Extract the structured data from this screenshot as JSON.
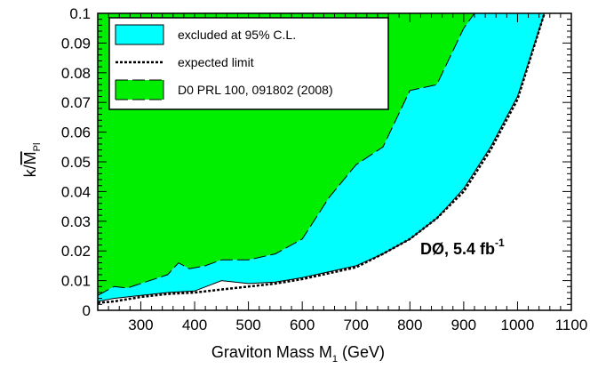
{
  "chart_data": {
    "type": "area",
    "xlabel_main": "Graviton Mass M",
    "xlabel_sub": "1",
    "xlabel_unit": " (GeV)",
    "ylabel_k": "k/",
    "ylabel_M": "M",
    "ylabel_sub": "Pl",
    "xlim": [
      220,
      1100
    ],
    "ylim": [
      0,
      0.1
    ],
    "x_ticks": [
      300,
      400,
      500,
      600,
      700,
      800,
      900,
      1000,
      1100
    ],
    "x_tick_labels": [
      "300",
      "400",
      "500",
      "600",
      "700",
      "800",
      "900",
      "1000",
      "1100"
    ],
    "y_ticks": [
      0,
      0.01,
      0.02,
      0.03,
      0.04,
      0.05,
      0.06,
      0.07,
      0.08,
      0.09,
      0.1
    ],
    "y_tick_labels": [
      "0",
      "0.01",
      "0.02",
      "0.03",
      "0.04",
      "0.05",
      "0.06",
      "0.07",
      "0.08",
      "0.09",
      "0.1"
    ],
    "annotation": {
      "text": "DØ, 5.4 fb",
      "sup": "-1"
    },
    "legend": [
      {
        "label": "excluded at 95% C.L.",
        "kind": "fill",
        "color": "#00ffff"
      },
      {
        "label": "expected limit",
        "kind": "dotted-line",
        "color": "#000000"
      },
      {
        "label": "D0 PRL 100, 091802 (2008)",
        "kind": "fill-dashed",
        "color": "#00ee00"
      }
    ],
    "series": [
      {
        "name": "excluded at 95% C.L.",
        "color": "#00ffff",
        "x": [
          220,
          250,
          300,
          350,
          400,
          450,
          500,
          550,
          600,
          650,
          700,
          750,
          800,
          850,
          900,
          950,
          1000,
          1050
        ],
        "y": [
          0.003,
          0.004,
          0.005,
          0.006,
          0.0065,
          0.01,
          0.009,
          0.0095,
          0.011,
          0.013,
          0.015,
          0.019,
          0.024,
          0.031,
          0.041,
          0.055,
          0.072,
          0.1
        ]
      },
      {
        "name": "expected limit",
        "color": "#000000",
        "x": [
          220,
          250,
          300,
          350,
          400,
          450,
          500,
          550,
          600,
          650,
          700,
          750,
          800,
          850,
          900,
          950,
          1000,
          1050
        ],
        "y": [
          0.0025,
          0.003,
          0.0045,
          0.0055,
          0.006,
          0.007,
          0.008,
          0.009,
          0.0105,
          0.0125,
          0.0145,
          0.019,
          0.024,
          0.031,
          0.04,
          0.054,
          0.071,
          0.1
        ]
      },
      {
        "name": "D0 PRL 100, 091802 (2008)",
        "color": "#00ee00",
        "x": [
          220,
          250,
          275,
          300,
          350,
          370,
          390,
          420,
          450,
          500,
          550,
          600,
          650,
          700,
          750,
          800,
          850,
          900,
          920
        ],
        "y": [
          0.005,
          0.008,
          0.0075,
          0.009,
          0.012,
          0.016,
          0.014,
          0.015,
          0.017,
          0.017,
          0.019,
          0.024,
          0.038,
          0.049,
          0.055,
          0.074,
          0.076,
          0.095,
          0.1
        ]
      }
    ]
  }
}
